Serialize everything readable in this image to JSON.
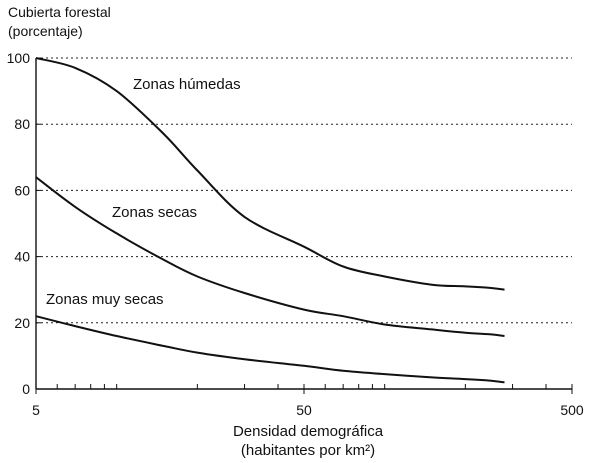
{
  "chart_data": {
    "type": "line",
    "ylabel_lines": [
      "Cubierta forestal",
      "(porcentaje)"
    ],
    "xlabel_lines": [
      "Densidad demográfica",
      "(habitantes por km²)"
    ],
    "x_scale": "log",
    "xlim": [
      5,
      500
    ],
    "ylim": [
      0,
      100
    ],
    "x_ticks": [
      5,
      50,
      500
    ],
    "y_ticks": [
      0,
      20,
      40,
      60,
      80,
      100
    ],
    "grid": "horizontal dotted",
    "series": [
      {
        "name": "Zonas húmedas",
        "x": [
          5,
          7,
          10,
          15,
          20,
          30,
          50,
          70,
          100,
          150,
          200,
          250,
          280
        ],
        "y": [
          100,
          97,
          90,
          77,
          66,
          52,
          43,
          37,
          34,
          31.5,
          31,
          30.5,
          30
        ]
      },
      {
        "name": "Zonas secas",
        "x": [
          5,
          7,
          10,
          15,
          20,
          30,
          50,
          70,
          100,
          150,
          200,
          250,
          280
        ],
        "y": [
          64,
          55,
          47,
          39,
          34,
          29,
          24,
          22,
          19.5,
          18,
          17,
          16.5,
          16
        ]
      },
      {
        "name": "Zonas muy secas",
        "x": [
          5,
          7,
          10,
          15,
          20,
          30,
          50,
          70,
          100,
          150,
          200,
          250,
          280
        ],
        "y": [
          22,
          19,
          16,
          13,
          11,
          9,
          7,
          5.5,
          4.5,
          3.5,
          3,
          2.5,
          2
        ]
      }
    ]
  }
}
